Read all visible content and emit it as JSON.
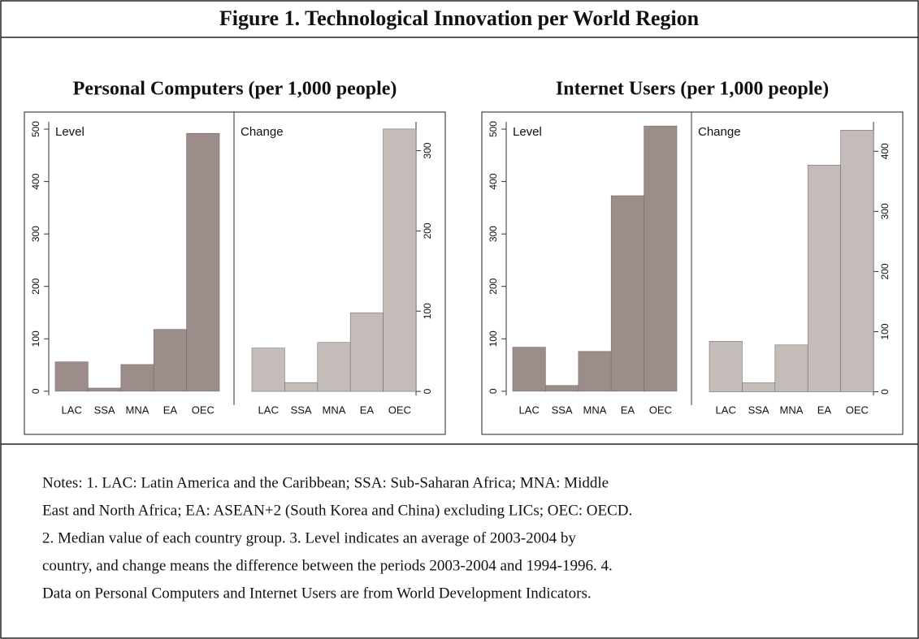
{
  "title": "Figure 1. Technological Innovation per World Region",
  "chart_data": [
    {
      "type": "bar",
      "title": "Personal Computers (per 1,000 people)",
      "categories": [
        "LAC",
        "SSA",
        "MNA",
        "EA",
        "OEC"
      ],
      "series": [
        {
          "name": "Level",
          "color": "#9c8c8a",
          "values": [
            56,
            6,
            51,
            118,
            492
          ]
        },
        {
          "name": "Change",
          "color": "#c4bcb8",
          "axis": "y2",
          "values": [
            54,
            11,
            61,
            98,
            327
          ]
        }
      ],
      "ylim": [
        -8,
        514
      ],
      "yticks": [
        0,
        100,
        200,
        300,
        400,
        500
      ],
      "y2lim": [
        -5,
        336
      ],
      "y2ticks": [
        0,
        100,
        200,
        300
      ]
    },
    {
      "type": "bar",
      "title": "Internet Users (per 1,000 people)",
      "categories": [
        "LAC",
        "SSA",
        "MNA",
        "EA",
        "OEC"
      ],
      "series": [
        {
          "name": "Level",
          "color": "#9c8c8a",
          "values": [
            84,
            11,
            76,
            373,
            506
          ]
        },
        {
          "name": "Change",
          "color": "#c4bcb8",
          "axis": "y2",
          "values": [
            84,
            15,
            78,
            377,
            435
          ]
        }
      ],
      "ylim": [
        -8,
        514
      ],
      "yticks": [
        0,
        100,
        200,
        300,
        400,
        500
      ],
      "y2lim": [
        -6,
        449
      ],
      "y2ticks": [
        0,
        100,
        200,
        300,
        400
      ]
    }
  ],
  "notes": [
    "Notes: 1. LAC: Latin America and the Caribbean; SSA: Sub-Saharan Africa; MNA: Middle",
    "East and North Africa; EA: ASEAN+2 (South Korea and China) excluding LICs; OEC: OECD.",
    "2. Median value of each country group.  3. Level indicates an average of 2003-2004 by",
    "country, and change means the difference between the periods 2003-2004 and 1994-1996.  4.",
    "Data on Personal Computers and Internet Users are from World Development Indicators."
  ]
}
